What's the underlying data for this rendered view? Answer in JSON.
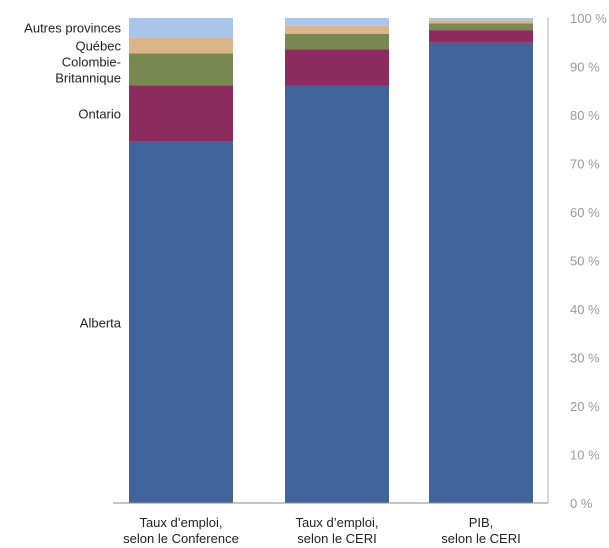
{
  "chart_data": {
    "type": "bar",
    "stacked": true,
    "orientation": "vertical",
    "title": "",
    "xlabel": "",
    "ylabel": "",
    "ylim": [
      0,
      100
    ],
    "y_ticks": [
      "0 %",
      "10 %",
      "20 %",
      "30 %",
      "40 %",
      "50 %",
      "60 %",
      "70 %",
      "80 %",
      "90 %",
      "100 %"
    ],
    "y_axis_position": "right",
    "grid": false,
    "categories": [
      [
        "Taux d’emploi,",
        "selon le Conference"
      ],
      [
        "Taux d’emploi,",
        "selon le CERI"
      ],
      [
        "PIB,",
        "selon le CERI"
      ]
    ],
    "series": [
      {
        "name": "Alberta",
        "color": "#41639b",
        "values": [
          74.5,
          86.0,
          94.9
        ]
      },
      {
        "name": "Ontario",
        "color": "#8b2b5e",
        "values": [
          11.6,
          7.5,
          2.6
        ]
      },
      {
        "name": [
          "Colombie-",
          "Britannique"
        ],
        "color": "#778850",
        "values": [
          6.6,
          3.2,
          1.4
        ]
      },
      {
        "name": "Québec",
        "color": "#dcb48a",
        "values": [
          3.3,
          1.7,
          0.6
        ]
      },
      {
        "name": "Autres provinces",
        "color": "#a9c5ea",
        "values": [
          4.0,
          1.6,
          0.5
        ]
      }
    ],
    "legend_placement": "left, beside first bar"
  }
}
